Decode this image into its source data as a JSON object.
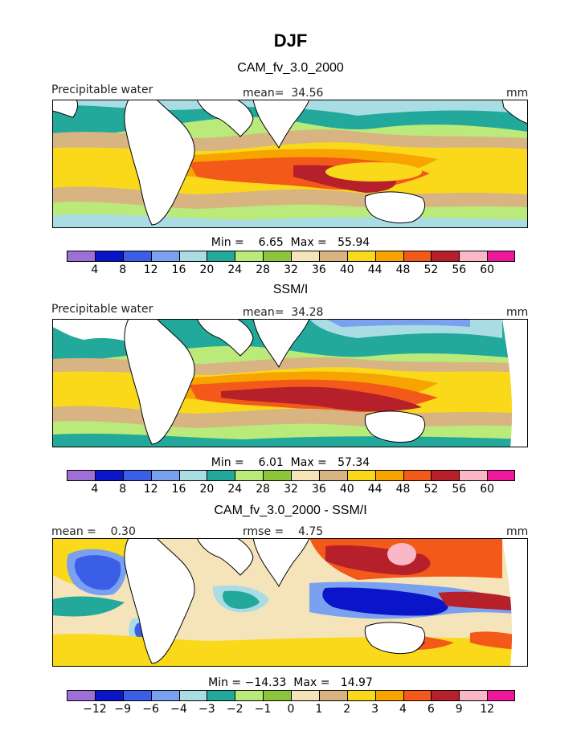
{
  "figure_title": "DJF",
  "panels": [
    {
      "title": "CAM_fv_3.0_2000",
      "left_label": "Precipitable water",
      "center_label": "mean=  34.56",
      "right_label": "mm",
      "minmax": "Min =    6.65  Max =   55.94",
      "colorbar": [
        "4",
        "8",
        "12",
        "16",
        "20",
        "24",
        "28",
        "32",
        "36",
        "40",
        "44",
        "48",
        "52",
        "56",
        "60"
      ]
    },
    {
      "title": "SSM/I",
      "left_label": "Precipitable water",
      "center_label": "mean=  34.28",
      "right_label": "mm",
      "minmax": "Min =    6.01  Max =   57.34",
      "colorbar": [
        "4",
        "8",
        "12",
        "16",
        "20",
        "24",
        "28",
        "32",
        "36",
        "40",
        "44",
        "48",
        "52",
        "56",
        "60"
      ]
    },
    {
      "title": "CAM_fv_3.0_2000 - SSM/I",
      "left_label": "mean =    0.30",
      "center_label": "rmse =    4.75",
      "right_label": "mm",
      "minmax": "Min = −14.33  Max =   14.97",
      "colorbar": [
        "−12",
        "−9",
        "−6",
        "−4",
        "−3",
        "−2",
        "−1",
        "0",
        "1",
        "2",
        "3",
        "4",
        "6",
        "9",
        "12"
      ]
    }
  ],
  "colors": {
    "palette": [
      "#9e6fd6",
      "#0a14c8",
      "#3a5ee6",
      "#7aa0f0",
      "#a9dde3",
      "#22a99c",
      "#b9ea7a",
      "#8cc43c",
      "#f5e4b9",
      "#d9b483",
      "#f9d91a",
      "#f7a400",
      "#f35a1a",
      "#b5202a",
      "#f9b7c8",
      "#f0189a"
    ],
    "land": "#ffffff",
    "coast": "#000000"
  }
}
